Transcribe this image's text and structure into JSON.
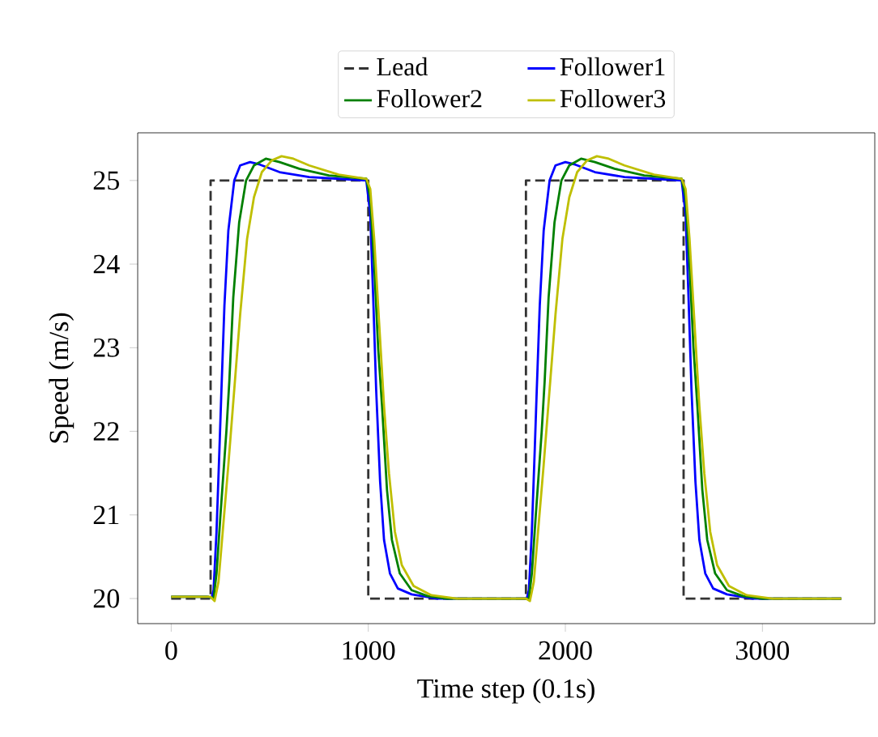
{
  "chart_data": {
    "type": "line",
    "xlabel": "Time step (0.1s)",
    "ylabel": "Speed (m/s)",
    "xlim": [
      -170,
      3570
    ],
    "ylim": [
      19.7,
      25.57
    ],
    "xticks": [
      0,
      1000,
      2000,
      3000
    ],
    "yticks": [
      20,
      21,
      22,
      23,
      24,
      25
    ],
    "legend": "top",
    "grid": false,
    "marker": "none",
    "series": [
      {
        "name": "Lead",
        "color": "#333333",
        "line_style": "dashed",
        "x": [
          0,
          200,
          200,
          1000,
          1000,
          1800,
          1800,
          2600,
          2600,
          3400
        ],
        "values": [
          20,
          20,
          25,
          25,
          20,
          20,
          25,
          25,
          20,
          20
        ]
      },
      {
        "name": "Follower1",
        "color": "#0000ff",
        "line_style": "solid",
        "x": [
          0,
          180,
          205,
          215,
          230,
          245,
          255,
          270,
          290,
          320,
          350,
          400,
          450,
          550,
          700,
          850,
          990,
          1010,
          1025,
          1040,
          1060,
          1080,
          1110,
          1150,
          1220,
          1350,
          1800,
          1805,
          1815,
          1830,
          1845,
          1855,
          1870,
          1890,
          1920,
          1950,
          2000,
          2050,
          2150,
          2300,
          2450,
          2590,
          2610,
          2625,
          2640,
          2660,
          2680,
          2710,
          2750,
          2820,
          2950,
          3400
        ],
        "values": [
          20.02,
          20.02,
          20.01,
          20.1,
          20.8,
          21.8,
          22.5,
          23.5,
          24.4,
          25.0,
          25.18,
          25.22,
          25.19,
          25.1,
          25.04,
          25.02,
          25.0,
          24.6,
          23.6,
          22.5,
          21.4,
          20.7,
          20.3,
          20.12,
          20.05,
          20.0,
          20.0,
          20.01,
          20.1,
          20.8,
          21.8,
          22.5,
          23.5,
          24.4,
          25.0,
          25.18,
          25.22,
          25.19,
          25.1,
          25.04,
          25.02,
          25.0,
          24.6,
          23.6,
          22.5,
          21.4,
          20.7,
          20.3,
          20.12,
          20.05,
          20.0,
          20.0
        ]
      },
      {
        "name": "Follower2",
        "color": "#008000",
        "line_style": "solid",
        "x": [
          0,
          190,
          215,
          230,
          250,
          280,
          295,
          315,
          345,
          380,
          420,
          480,
          550,
          650,
          800,
          990,
          1010,
          1030,
          1050,
          1070,
          1095,
          1120,
          1160,
          1220,
          1300,
          1400,
          1800,
          1815,
          1830,
          1850,
          1880,
          1895,
          1915,
          1945,
          1980,
          2020,
          2080,
          2150,
          2250,
          2400,
          2590,
          2610,
          2630,
          2650,
          2670,
          2695,
          2720,
          2760,
          2820,
          2900,
          3000,
          3400
        ],
        "values": [
          20.02,
          20.02,
          20.0,
          20.3,
          21.0,
          22.0,
          22.6,
          23.6,
          24.5,
          25.0,
          25.18,
          25.26,
          25.22,
          25.14,
          25.06,
          25.02,
          24.8,
          24.0,
          23.0,
          22.3,
          21.3,
          20.7,
          20.3,
          20.1,
          20.03,
          20.0,
          20.0,
          20.0,
          20.3,
          21.0,
          22.0,
          22.6,
          23.6,
          24.5,
          25.0,
          25.18,
          25.26,
          25.22,
          25.14,
          25.06,
          25.02,
          24.8,
          24.0,
          23.0,
          22.3,
          21.3,
          20.7,
          20.3,
          20.1,
          20.03,
          20.0,
          20.0
        ]
      },
      {
        "name": "Follower3",
        "color": "#bfbf00",
        "line_style": "solid",
        "x": [
          0,
          200,
          220,
          240,
          265,
          290,
          320,
          350,
          385,
          420,
          460,
          510,
          560,
          620,
          700,
          850,
          990,
          1010,
          1030,
          1055,
          1080,
          1105,
          1135,
          1170,
          1230,
          1320,
          1450,
          1800,
          1820,
          1840,
          1865,
          1890,
          1920,
          1950,
          1985,
          2020,
          2060,
          2110,
          2160,
          2220,
          2300,
          2450,
          2590,
          2610,
          2630,
          2655,
          2680,
          2705,
          2735,
          2770,
          2830,
          2920,
          3050,
          3400
        ],
        "values": [
          20.02,
          20.02,
          19.97,
          20.2,
          20.9,
          21.6,
          22.5,
          23.4,
          24.3,
          24.8,
          25.1,
          25.24,
          25.29,
          25.26,
          25.18,
          25.07,
          25.02,
          24.9,
          24.3,
          23.3,
          22.3,
          21.5,
          20.8,
          20.4,
          20.15,
          20.04,
          20.0,
          20.0,
          19.97,
          20.2,
          20.9,
          21.6,
          22.5,
          23.4,
          24.3,
          24.8,
          25.1,
          25.24,
          25.29,
          25.26,
          25.18,
          25.07,
          25.02,
          24.9,
          24.3,
          23.3,
          22.3,
          21.5,
          20.8,
          20.4,
          20.15,
          20.04,
          20.0,
          20.0
        ]
      }
    ]
  }
}
